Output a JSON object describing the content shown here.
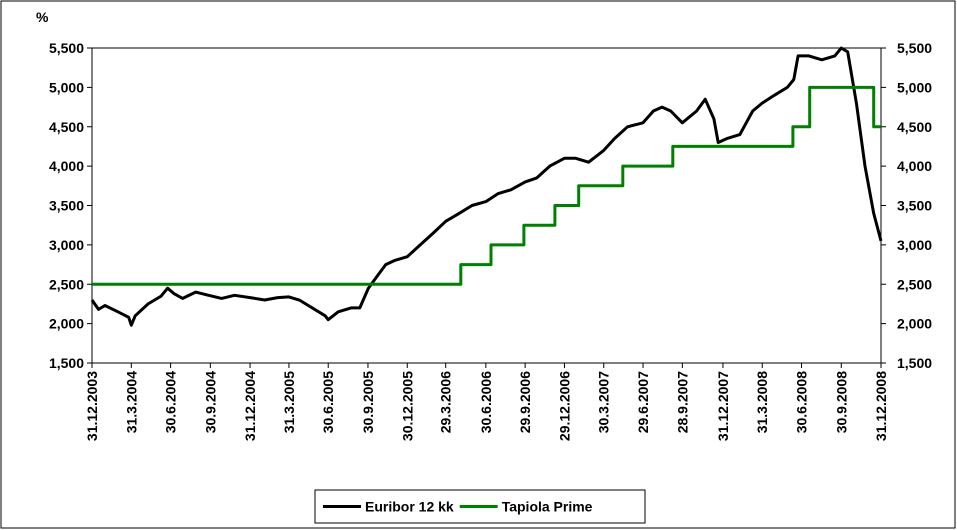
{
  "chart_data": {
    "type": "line",
    "ylabel": "%",
    "xlim": [
      0,
      1827
    ],
    "xticks": [
      {
        "value": 0,
        "label": "31.12.2003"
      },
      {
        "value": 91,
        "label": "31.3.2004"
      },
      {
        "value": 182,
        "label": "30.6.2004"
      },
      {
        "value": 274,
        "label": "30.9.2004"
      },
      {
        "value": 366,
        "label": "31.12.2004"
      },
      {
        "value": 456,
        "label": "31.3.2005"
      },
      {
        "value": 547,
        "label": "30.6.2005"
      },
      {
        "value": 639,
        "label": "30.9.2005"
      },
      {
        "value": 730,
        "label": "30.12.2005"
      },
      {
        "value": 819,
        "label": "29.3.2006"
      },
      {
        "value": 912,
        "label": "30.6.2006"
      },
      {
        "value": 1003,
        "label": "29.9.2006"
      },
      {
        "value": 1094,
        "label": "29.12.2006"
      },
      {
        "value": 1185,
        "label": "30.3.2007"
      },
      {
        "value": 1276,
        "label": "29.6.2007"
      },
      {
        "value": 1367,
        "label": "28.9.2007"
      },
      {
        "value": 1461,
        "label": "31.12.2007"
      },
      {
        "value": 1552,
        "label": "31.3.2008"
      },
      {
        "value": 1643,
        "label": "30.6.2008"
      },
      {
        "value": 1735,
        "label": "30.9.2008"
      },
      {
        "value": 1827,
        "label": "31.12.2008"
      }
    ],
    "ylim": [
      1500,
      5500
    ],
    "yticks": [
      {
        "value": 1500,
        "label": "1,500"
      },
      {
        "value": 2000,
        "label": "2,000"
      },
      {
        "value": 2500,
        "label": "2,500"
      },
      {
        "value": 3000,
        "label": "3,000"
      },
      {
        "value": 3500,
        "label": "3,500"
      },
      {
        "value": 4000,
        "label": "4,000"
      },
      {
        "value": 4500,
        "label": "4,500"
      },
      {
        "value": 5000,
        "label": "5,000"
      },
      {
        "value": 5500,
        "label": "5,500"
      }
    ],
    "y2lim": [
      1500,
      5500
    ],
    "y2ticks": [
      {
        "value": 1500,
        "label": "1,500"
      },
      {
        "value": 2000,
        "label": "2,000"
      },
      {
        "value": 2500,
        "label": "2,500"
      },
      {
        "value": 3000,
        "label": "3,000"
      },
      {
        "value": 3500,
        "label": "3,500"
      },
      {
        "value": 4000,
        "label": "4,000"
      },
      {
        "value": 4500,
        "label": "4,500"
      },
      {
        "value": 5000,
        "label": "5,000"
      },
      {
        "value": 5500,
        "label": "5,500"
      }
    ],
    "legend": "bottom",
    "series": [
      {
        "name": "Euribor 12 kk",
        "color": "#000000",
        "x": [
          0,
          15,
          30,
          60,
          85,
          91,
          100,
          130,
          160,
          175,
          190,
          210,
          240,
          270,
          300,
          330,
          366,
          400,
          430,
          456,
          480,
          510,
          540,
          547,
          570,
          600,
          620,
          640,
          660,
          680,
          700,
          730,
          760,
          790,
          819,
          850,
          880,
          912,
          940,
          970,
          1003,
          1030,
          1060,
          1094,
          1120,
          1150,
          1185,
          1210,
          1240,
          1276,
          1300,
          1320,
          1340,
          1367,
          1400,
          1420,
          1440,
          1450,
          1470,
          1500,
          1530,
          1552,
          1580,
          1610,
          1625,
          1635,
          1660,
          1690,
          1720,
          1735,
          1750,
          1770,
          1790,
          1810,
          1827
        ],
        "values": [
          2300,
          2180,
          2230,
          2150,
          2080,
          1980,
          2100,
          2250,
          2350,
          2450,
          2380,
          2320,
          2400,
          2360,
          2320,
          2360,
          2330,
          2300,
          2330,
          2340,
          2300,
          2200,
          2100,
          2050,
          2150,
          2200,
          2200,
          2450,
          2600,
          2750,
          2800,
          2850,
          3000,
          3150,
          3300,
          3400,
          3500,
          3550,
          3650,
          3700,
          3800,
          3850,
          4000,
          4100,
          4100,
          4050,
          4200,
          4350,
          4500,
          4550,
          4700,
          4750,
          4700,
          4550,
          4700,
          4850,
          4600,
          4300,
          4350,
          4400,
          4700,
          4800,
          4900,
          5000,
          5100,
          5400,
          5400,
          5350,
          5400,
          5500,
          5450,
          4800,
          4000,
          3400,
          3050
        ]
      },
      {
        "name": "Tapiola Prime",
        "color": "#008000",
        "x": [
          0,
          854,
          854,
          924,
          924,
          1000,
          1000,
          1072,
          1072,
          1127,
          1127,
          1229,
          1229,
          1345,
          1345,
          1623,
          1623,
          1662,
          1662,
          1810,
          1810,
          1827
        ],
        "values": [
          2500,
          2500,
          2750,
          2750,
          3000,
          3000,
          3250,
          3250,
          3500,
          3500,
          3750,
          3750,
          4000,
          4000,
          4250,
          4250,
          4500,
          4500,
          5000,
          5000,
          4500,
          4500
        ]
      }
    ]
  }
}
